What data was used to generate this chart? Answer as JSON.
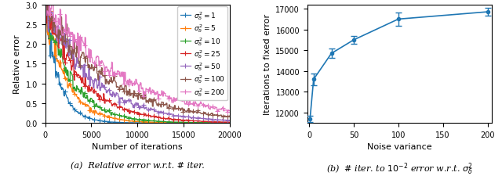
{
  "left_plot": {
    "sigma_values": [
      1,
      5,
      10,
      25,
      50,
      100,
      200
    ],
    "colors": [
      "#1f77b4",
      "#ff7f0e",
      "#2ca02c",
      "#d62728",
      "#9467bd",
      "#8c564b",
      "#e377c2"
    ],
    "taus": [
      1500,
      2300,
      2900,
      4000,
      5200,
      6800,
      8800
    ],
    "xlabel": "Number of iterations",
    "ylabel": "Relative error",
    "xlim": [
      0,
      20000
    ],
    "ylim": [
      0.0,
      3.0
    ],
    "caption": "(a)  Relative error w.r.t. # iter."
  },
  "right_plot": {
    "x": [
      1,
      5,
      25,
      50,
      100,
      200
    ],
    "y": [
      11700,
      13600,
      14850,
      15500,
      16500,
      16850
    ],
    "yerr": [
      150,
      280,
      220,
      180,
      320,
      180
    ],
    "xlabel": "Noise variance",
    "ylabel": "Iterations to fixed error",
    "xlim": [
      -2,
      205
    ],
    "ylim": [
      11500,
      17200
    ],
    "yticks": [
      12000,
      13000,
      14000,
      15000,
      16000,
      17000
    ],
    "caption": "(b)  # iter. to $10^{-2}$ error w.r.t. $\\sigma^2_\\delta$",
    "color": "#1f77b4"
  }
}
